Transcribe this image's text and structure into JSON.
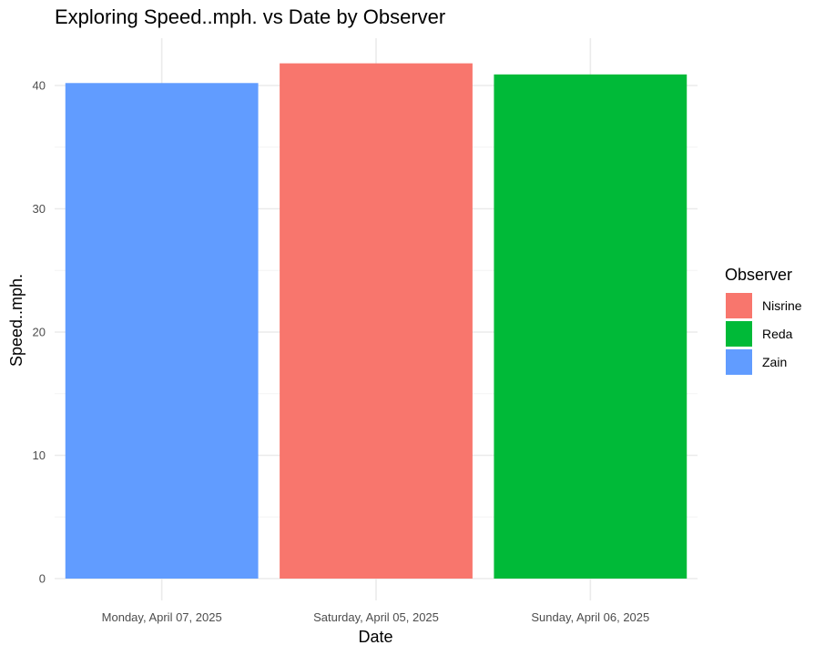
{
  "chart_data": {
    "type": "bar",
    "title": "Exploring Speed..mph. vs Date by Observer",
    "xlabel": "Date",
    "ylabel": "Speed..mph.",
    "categories": [
      "Monday, April 07, 2025",
      "Saturday, April 05, 2025",
      "Sunday, April 06, 2025"
    ],
    "values": [
      40.2,
      41.8,
      40.9
    ],
    "bar_observer": [
      "Zain",
      "Nisrine",
      "Reda"
    ],
    "ylim": [
      0,
      44
    ],
    "y_ticks": [
      0,
      10,
      20,
      30,
      40
    ],
    "y_minor_ticks": [
      5,
      15,
      25,
      35
    ],
    "grid": true,
    "legend": {
      "title": "Observer",
      "placement": "right",
      "entries": [
        {
          "name": "Nisrine",
          "color": "#F8766D"
        },
        {
          "name": "Reda",
          "color": "#00BA38"
        },
        {
          "name": "Zain",
          "color": "#619CFF"
        }
      ]
    }
  }
}
